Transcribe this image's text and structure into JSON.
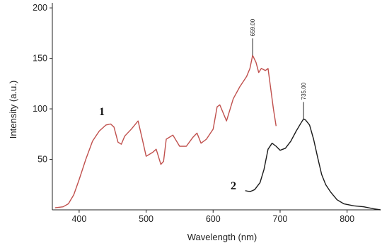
{
  "chart_data": {
    "type": "line",
    "title": "",
    "xlabel": "Wavelength (nm)",
    "ylabel": "Intensity (a.u.)",
    "xlim": [
      360,
      850
    ],
    "ylim": [
      0,
      205
    ],
    "x_ticks": [
      400,
      500,
      600,
      700,
      800
    ],
    "x_tick_labels": [
      "400",
      "500",
      "600",
      "700",
      "800"
    ],
    "y_ticks": [
      50,
      100,
      150,
      200
    ],
    "y_tick_labels": [
      "50",
      "100",
      "150",
      "200"
    ],
    "grid": false,
    "legend": "none",
    "series": [
      {
        "name": "1",
        "color": "#c0504d",
        "points": [
          [
            364,
            2
          ],
          [
            376,
            3
          ],
          [
            384,
            6
          ],
          [
            392,
            15
          ],
          [
            400,
            30
          ],
          [
            410,
            50
          ],
          [
            420,
            68
          ],
          [
            430,
            78
          ],
          [
            440,
            84
          ],
          [
            447,
            85
          ],
          [
            452,
            82
          ],
          [
            458,
            67
          ],
          [
            463,
            65
          ],
          [
            468,
            73
          ],
          [
            478,
            80
          ],
          [
            488,
            88
          ],
          [
            495,
            68
          ],
          [
            500,
            53
          ],
          [
            510,
            57
          ],
          [
            515,
            60
          ],
          [
            522,
            45
          ],
          [
            526,
            48
          ],
          [
            530,
            70
          ],
          [
            540,
            74
          ],
          [
            550,
            63
          ],
          [
            560,
            63
          ],
          [
            570,
            72
          ],
          [
            576,
            76
          ],
          [
            582,
            66
          ],
          [
            590,
            70
          ],
          [
            600,
            80
          ],
          [
            606,
            102
          ],
          [
            610,
            104
          ],
          [
            620,
            88
          ],
          [
            630,
            110
          ],
          [
            640,
            122
          ],
          [
            650,
            132
          ],
          [
            655,
            140
          ],
          [
            659,
            153
          ],
          [
            664,
            146
          ],
          [
            668,
            136
          ],
          [
            672,
            140
          ],
          [
            678,
            138
          ],
          [
            682,
            140
          ],
          [
            690,
            100
          ],
          [
            694,
            83
          ]
        ],
        "label": "1",
        "peak_label": "659.00",
        "peak_x": 659
      },
      {
        "name": "2",
        "color": "#1a1a1a",
        "points": [
          [
            648,
            19
          ],
          [
            655,
            18
          ],
          [
            662,
            20
          ],
          [
            670,
            27
          ],
          [
            676,
            40
          ],
          [
            682,
            60
          ],
          [
            688,
            66
          ],
          [
            694,
            63
          ],
          [
            700,
            59
          ],
          [
            708,
            61
          ],
          [
            716,
            68
          ],
          [
            724,
            78
          ],
          [
            732,
            87
          ],
          [
            735,
            90
          ],
          [
            738,
            89
          ],
          [
            744,
            84
          ],
          [
            750,
            70
          ],
          [
            756,
            52
          ],
          [
            762,
            35
          ],
          [
            768,
            25
          ],
          [
            775,
            18
          ],
          [
            785,
            10
          ],
          [
            795,
            6
          ],
          [
            810,
            4
          ],
          [
            825,
            3
          ],
          [
            840,
            1
          ],
          [
            850,
            0
          ]
        ],
        "label": "2",
        "peak_label": "735.00",
        "peak_x": 735
      }
    ]
  }
}
